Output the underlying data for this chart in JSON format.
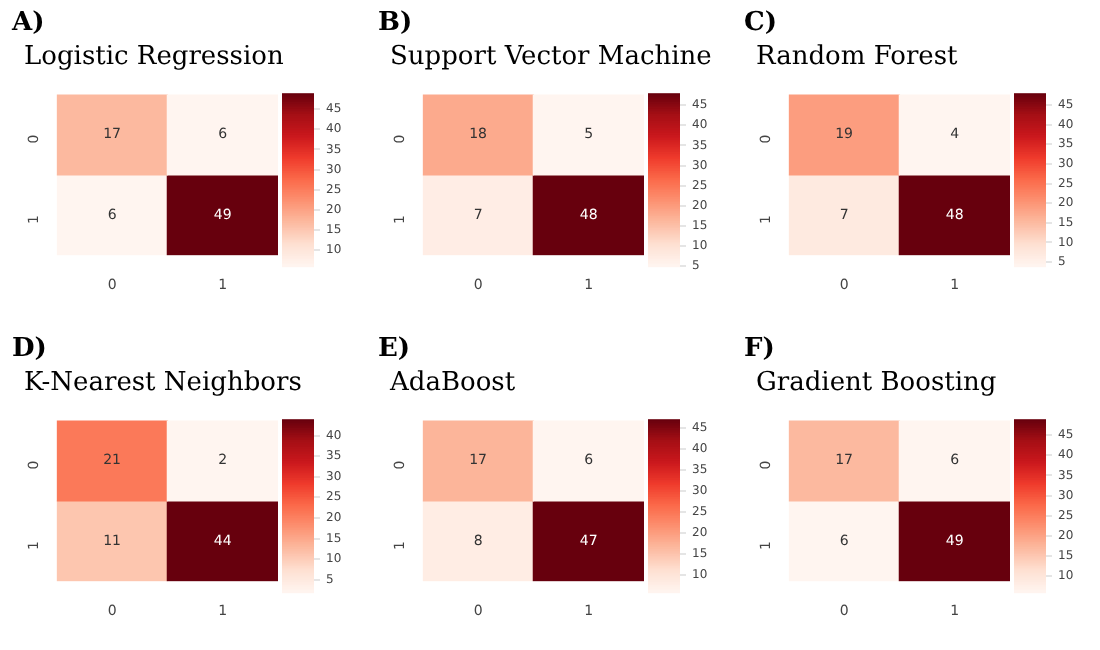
{
  "chart_data": [
    {
      "type": "heatmap",
      "title": "Logistic Regression",
      "annotations": [
        "A)"
      ],
      "categories": [
        "0",
        "1"
      ],
      "y_categories": [
        "0",
        "1"
      ],
      "cells": [
        [
          17,
          6
        ],
        [
          6,
          49
        ]
      ],
      "clim": [
        6,
        49
      ],
      "cticks": [
        10,
        15,
        20,
        25,
        30,
        35,
        40,
        45
      ],
      "data_labels": true
    },
    {
      "type": "heatmap",
      "title": "Support Vector Machine",
      "annotations": [
        "B)"
      ],
      "categories": [
        "0",
        "1"
      ],
      "y_categories": [
        "0",
        "1"
      ],
      "cells": [
        [
          18,
          5
        ],
        [
          7,
          48
        ]
      ],
      "clim": [
        5,
        48
      ],
      "cticks": [
        5,
        10,
        15,
        20,
        25,
        30,
        35,
        40,
        45
      ],
      "data_labels": true
    },
    {
      "type": "heatmap",
      "title": "Random Forest",
      "annotations": [
        "C)"
      ],
      "categories": [
        "0",
        "1"
      ],
      "y_categories": [
        "0",
        "1"
      ],
      "cells": [
        [
          19,
          4
        ],
        [
          7,
          48
        ]
      ],
      "clim": [
        4,
        48
      ],
      "cticks": [
        5,
        10,
        15,
        20,
        25,
        30,
        35,
        40,
        45
      ],
      "data_labels": true
    },
    {
      "type": "heatmap",
      "title": "K-Nearest Neighbors",
      "annotations": [
        "D)"
      ],
      "categories": [
        "0",
        "1"
      ],
      "y_categories": [
        "0",
        "1"
      ],
      "cells": [
        [
          21,
          2
        ],
        [
          11,
          44
        ]
      ],
      "clim": [
        2,
        44
      ],
      "cticks": [
        5,
        10,
        15,
        20,
        25,
        30,
        35,
        40
      ],
      "data_labels": true
    },
    {
      "type": "heatmap",
      "title": "AdaBoost",
      "annotations": [
        "E)"
      ],
      "categories": [
        "0",
        "1"
      ],
      "y_categories": [
        "0",
        "1"
      ],
      "cells": [
        [
          17,
          6
        ],
        [
          8,
          47
        ]
      ],
      "clim": [
        6,
        47
      ],
      "cticks": [
        10,
        15,
        20,
        25,
        30,
        35,
        40,
        45
      ],
      "data_labels": true
    },
    {
      "type": "heatmap",
      "title": "Gradient Boosting",
      "annotations": [
        "F)"
      ],
      "categories": [
        "0",
        "1"
      ],
      "y_categories": [
        "0",
        "1"
      ],
      "cells": [
        [
          17,
          6
        ],
        [
          6,
          49
        ]
      ],
      "clim": [
        6,
        49
      ],
      "cticks": [
        10,
        15,
        20,
        25,
        30,
        35,
        40,
        45
      ],
      "data_labels": true
    }
  ]
}
